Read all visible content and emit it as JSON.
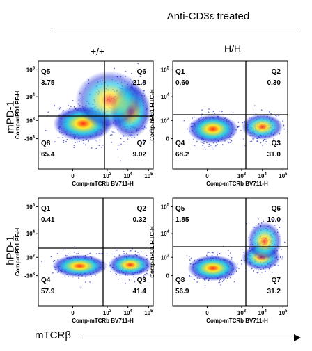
{
  "header": {
    "title": "Anti-CD3ε treated",
    "col_left": "+/+",
    "col_right": "H/H",
    "row_top": "mPD-1",
    "row_bottom": "hPD-1",
    "x_arrow_label": "mTCRβ"
  },
  "colors": {
    "density_low": "#1e2bd6",
    "density_mid": "#22c9e8",
    "density_high": "#ffe82a",
    "density_peak": "#ff2a12",
    "gate_line": "#000000"
  },
  "chart_data": [
    {
      "type": "scatter",
      "panel": "top-left",
      "xlabel": "Comp-mTCRb BV711-H",
      "ylabel": "Comp-mPD1 PE-H",
      "x_ticks": [
        "0",
        "10",
        "10",
        "10"
      ],
      "x_tick_exponents": [
        "",
        "3",
        "4",
        "5"
      ],
      "y_ticks": [
        "10",
        "10",
        "10",
        "10"
      ],
      "y_tick_exponents": [
        "5",
        "4",
        "3",
        "3"
      ],
      "y_tick_signs": [
        "",
        "",
        "",
        "-"
      ],
      "quadrants": [
        {
          "name": "Q5",
          "value": "3.75",
          "position": "upper-left"
        },
        {
          "name": "Q6",
          "value": "21.8",
          "position": "upper-right"
        },
        {
          "name": "Q8",
          "value": "65.4",
          "position": "lower-left"
        },
        {
          "name": "Q7",
          "value": "9.02",
          "position": "lower-right"
        }
      ]
    },
    {
      "type": "scatter",
      "panel": "top-right",
      "xlabel": "Comp-mTCRb BV711-H",
      "ylabel": "Comp-hPD1 FITC-H",
      "x_ticks": [
        "0",
        "10",
        "10",
        "10"
      ],
      "x_tick_exponents": [
        "",
        "3",
        "4",
        "5"
      ],
      "y_ticks": [
        "10",
        "10",
        "10",
        "0"
      ],
      "y_tick_exponents": [
        "5",
        "4",
        "3",
        ""
      ],
      "y_tick_signs": [
        "",
        "",
        "",
        ""
      ],
      "quadrants": [
        {
          "name": "Q1",
          "value": "0.60",
          "position": "upper-left"
        },
        {
          "name": "Q2",
          "value": "0.30",
          "position": "upper-right"
        },
        {
          "name": "Q4",
          "value": "68.2",
          "position": "lower-left"
        },
        {
          "name": "Q3",
          "value": "31.0",
          "position": "lower-right"
        }
      ]
    },
    {
      "type": "scatter",
      "panel": "bottom-left",
      "xlabel": "Comp-mTCRb BV711-H",
      "ylabel": "Comp-mPD1 PE-H",
      "x_ticks": [
        "0",
        "10",
        "10",
        "10"
      ],
      "x_tick_exponents": [
        "",
        "3",
        "4",
        "5"
      ],
      "y_ticks": [
        "10",
        "10",
        "10",
        "10"
      ],
      "y_tick_exponents": [
        "5",
        "4",
        "3",
        "3"
      ],
      "y_tick_signs": [
        "",
        "",
        "",
        "-"
      ],
      "quadrants": [
        {
          "name": "Q1",
          "value": "0.41",
          "position": "upper-left"
        },
        {
          "name": "Q2",
          "value": "0.32",
          "position": "upper-right"
        },
        {
          "name": "Q4",
          "value": "57.9",
          "position": "lower-left"
        },
        {
          "name": "Q3",
          "value": "41.4",
          "position": "lower-right"
        }
      ]
    },
    {
      "type": "scatter",
      "panel": "bottom-right",
      "xlabel": "Comp-mTCRb BV711-H",
      "ylabel": "Comp-hPD1 FITC-H",
      "x_ticks": [
        "0",
        "10",
        "10",
        "10"
      ],
      "x_tick_exponents": [
        "",
        "3",
        "4",
        "5"
      ],
      "y_ticks": [
        "10",
        "10",
        "10",
        "0"
      ],
      "y_tick_exponents": [
        "5",
        "4",
        "3",
        ""
      ],
      "y_tick_signs": [
        "",
        "",
        "",
        ""
      ],
      "quadrants": [
        {
          "name": "Q5",
          "value": "1.85",
          "position": "upper-left"
        },
        {
          "name": "Q6",
          "value": "10.0",
          "position": "upper-right"
        },
        {
          "name": "Q8",
          "value": "56.9",
          "position": "lower-left"
        },
        {
          "name": "Q7",
          "value": "31.2",
          "position": "lower-right"
        }
      ]
    }
  ]
}
